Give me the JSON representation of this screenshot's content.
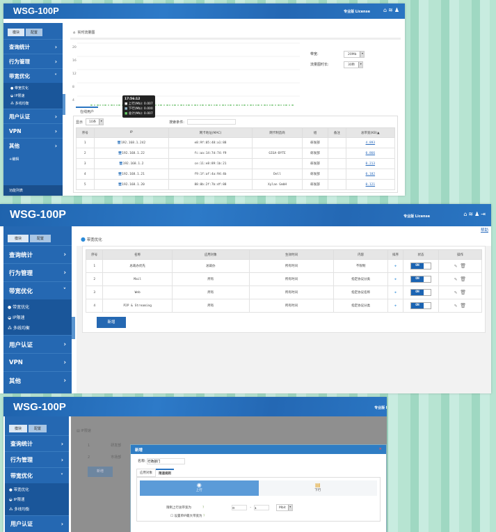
{
  "app": {
    "title": "WSG-100P",
    "license": "专业版 License",
    "help": "帮助",
    "icons": [
      "home-icon",
      "wifi-icon",
      "user-icon",
      "logout-icon"
    ]
  },
  "sidebar": {
    "tabs": [
      "模块",
      "配置"
    ],
    "items": [
      "查询统计",
      "行为管理",
      "带宽优化",
      "用户认证",
      "VPN",
      "其他"
    ],
    "sub_items": [
      "带宽优化",
      "IP限速",
      "多线均衡"
    ],
    "edit": "+编辑",
    "footer": "功能列表"
  },
  "panel1": {
    "breadcrumb": "实时流量图",
    "y_ticks": [
      "20",
      "16",
      "12",
      "8",
      "4"
    ],
    "bandwidth_label": "带宽:",
    "bandwidth_value": "20Mb",
    "duration_label": "流量图时长:",
    "duration_value": "30秒",
    "tooltip": {
      "time": "17:56:12",
      "up": "上行(Mb): 0.007",
      "down": "下行(Mb): 0.000",
      "total": "总计(Mb): 0.007"
    },
    "tab": "在线用户",
    "show_label": "显示",
    "show_value": "10条",
    "search_label": "搜索条件:",
    "search_value": "",
    "headers": [
      "序号",
      "IP",
      "网卡地址(MAC)",
      "网卡制造商",
      "组",
      "备注",
      "总带宽(KB)▲"
    ],
    "rows": [
      [
        "1",
        "192.168.1.242",
        "e8:9f:05:48:a1:88",
        "",
        "研发部",
        "",
        "4.893"
      ],
      [
        "2",
        "192.168.1.22",
        "fc:aa:14:7d:74:f9",
        "GIGA-BYTE",
        "研发部",
        "",
        "0.866"
      ],
      [
        "3",
        "192.168.1.2",
        "ce:11:e8:89:1b:21",
        "",
        "研发部",
        "",
        "0.213"
      ],
      [
        "4",
        "192.168.1.21",
        "f9:1f:af:4a:94:4b",
        "Dell",
        "研发部",
        "",
        "0.182"
      ],
      [
        "5",
        "192.168.1.20",
        "88:0b:2f:7b:df:88",
        "Xylan GmbH",
        "研发部",
        "",
        "0.121"
      ]
    ]
  },
  "panel2": {
    "section": "带宽优化",
    "headers": [
      "序号",
      "名称",
      "应用对象",
      "生效时间",
      "内容",
      "排序",
      "状态",
      "操作"
    ],
    "rows": [
      [
        "1",
        "总裁办优先",
        "总裁办",
        "所有时间",
        "不限制"
      ],
      [
        "2",
        "Mail",
        "所有",
        "所有时间",
        "指定协议分类"
      ],
      [
        "3",
        "Web",
        "所有",
        "所有时间",
        "指定协议名称"
      ],
      [
        "4",
        "P2P & Streaming",
        "所有",
        "所有时间",
        "指定协议分类"
      ]
    ],
    "toggle": "ON",
    "add": "新增"
  },
  "panel3": {
    "breadcrumb": "IP限速",
    "bg_rows": [
      [
        "1",
        "研发部"
      ],
      [
        "2",
        "市场部"
      ]
    ],
    "bg_add": "新增",
    "dialog": {
      "title": "新增",
      "name_label": "名称:",
      "name_value": "行政部门",
      "tabs": [
        "应用对象",
        "限速规则"
      ],
      "up": "上行",
      "down": "下行",
      "limit_label": "限制上行总带宽为",
      "min": "0",
      "sep": "-",
      "max": "1",
      "unit": "Mbit",
      "per_ip_label": "设置单IP最大带宽为"
    }
  },
  "colors": {
    "brand": "#2568b2",
    "accent": "#1b64b3",
    "chart_line": "#5cb85c"
  }
}
